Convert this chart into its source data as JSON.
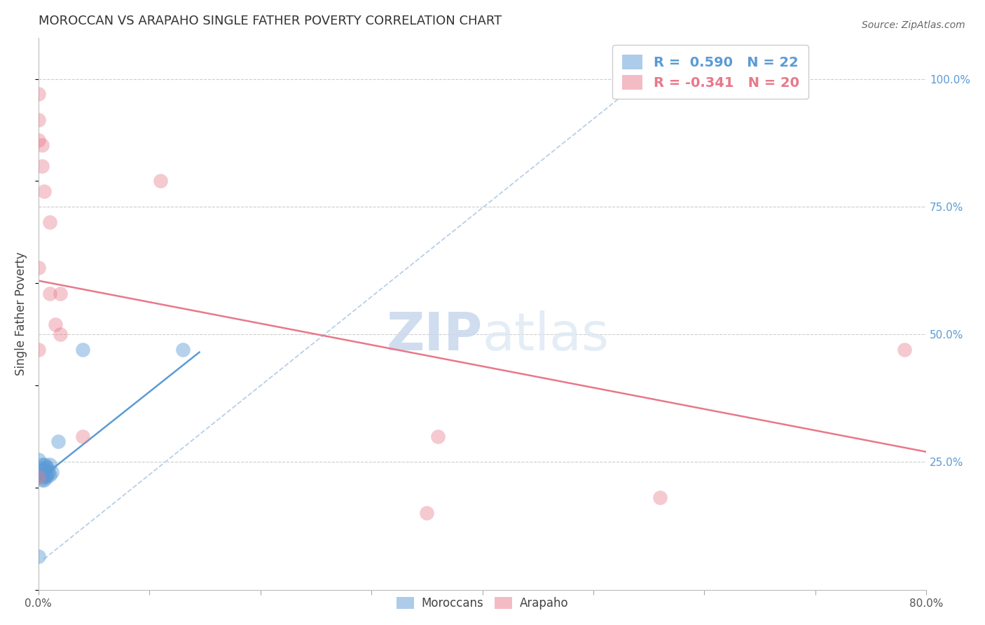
{
  "title": "MOROCCAN VS ARAPAHO SINGLE FATHER POVERTY CORRELATION CHART",
  "source": "Source: ZipAtlas.com",
  "ylabel": "Single Father Poverty",
  "right_yticks": [
    "100.0%",
    "75.0%",
    "50.0%",
    "25.0%"
  ],
  "right_ytick_vals": [
    1.0,
    0.75,
    0.5,
    0.25
  ],
  "xlim": [
    0.0,
    0.8
  ],
  "ylim": [
    0.0,
    1.08
  ],
  "blue_R": 0.59,
  "blue_N": 22,
  "pink_R": -0.341,
  "pink_N": 20,
  "blue_color": "#5b9bd5",
  "pink_color": "#e8788a",
  "dashed_color": "#b8cfe8",
  "grid_color": "#cccccc",
  "background_color": "#ffffff",
  "watermark_zip": "ZIP",
  "watermark_atlas": "atlas",
  "legend_label_blue": "Moroccans",
  "legend_label_pink": "Arapaho",
  "blue_points_x": [
    0.0,
    0.0,
    0.003,
    0.003,
    0.004,
    0.004,
    0.005,
    0.005,
    0.006,
    0.006,
    0.007,
    0.007,
    0.008,
    0.008,
    0.009,
    0.01,
    0.01,
    0.012,
    0.018,
    0.04,
    0.13,
    0.0
  ],
  "blue_points_y": [
    0.225,
    0.255,
    0.215,
    0.235,
    0.22,
    0.245,
    0.215,
    0.235,
    0.225,
    0.245,
    0.22,
    0.24,
    0.225,
    0.24,
    0.23,
    0.225,
    0.245,
    0.23,
    0.29,
    0.47,
    0.47,
    0.065
  ],
  "pink_points_x": [
    0.0,
    0.0,
    0.0,
    0.003,
    0.003,
    0.005,
    0.01,
    0.01,
    0.015,
    0.02,
    0.02,
    0.04,
    0.36,
    0.0,
    0.0,
    0.78,
    0.56,
    0.0,
    0.35,
    0.11
  ],
  "pink_points_y": [
    0.97,
    0.92,
    0.88,
    0.87,
    0.83,
    0.78,
    0.72,
    0.58,
    0.52,
    0.5,
    0.58,
    0.3,
    0.3,
    0.63,
    0.47,
    0.47,
    0.18,
    0.22,
    0.15,
    0.8
  ],
  "blue_line_x": [
    0.0,
    0.145
  ],
  "blue_line_y": [
    0.215,
    0.465
  ],
  "pink_line_x": [
    0.0,
    0.8
  ],
  "pink_line_y": [
    0.605,
    0.27
  ],
  "dashed_line_x": [
    0.005,
    0.545
  ],
  "dashed_line_y": [
    0.06,
    1.0
  ]
}
